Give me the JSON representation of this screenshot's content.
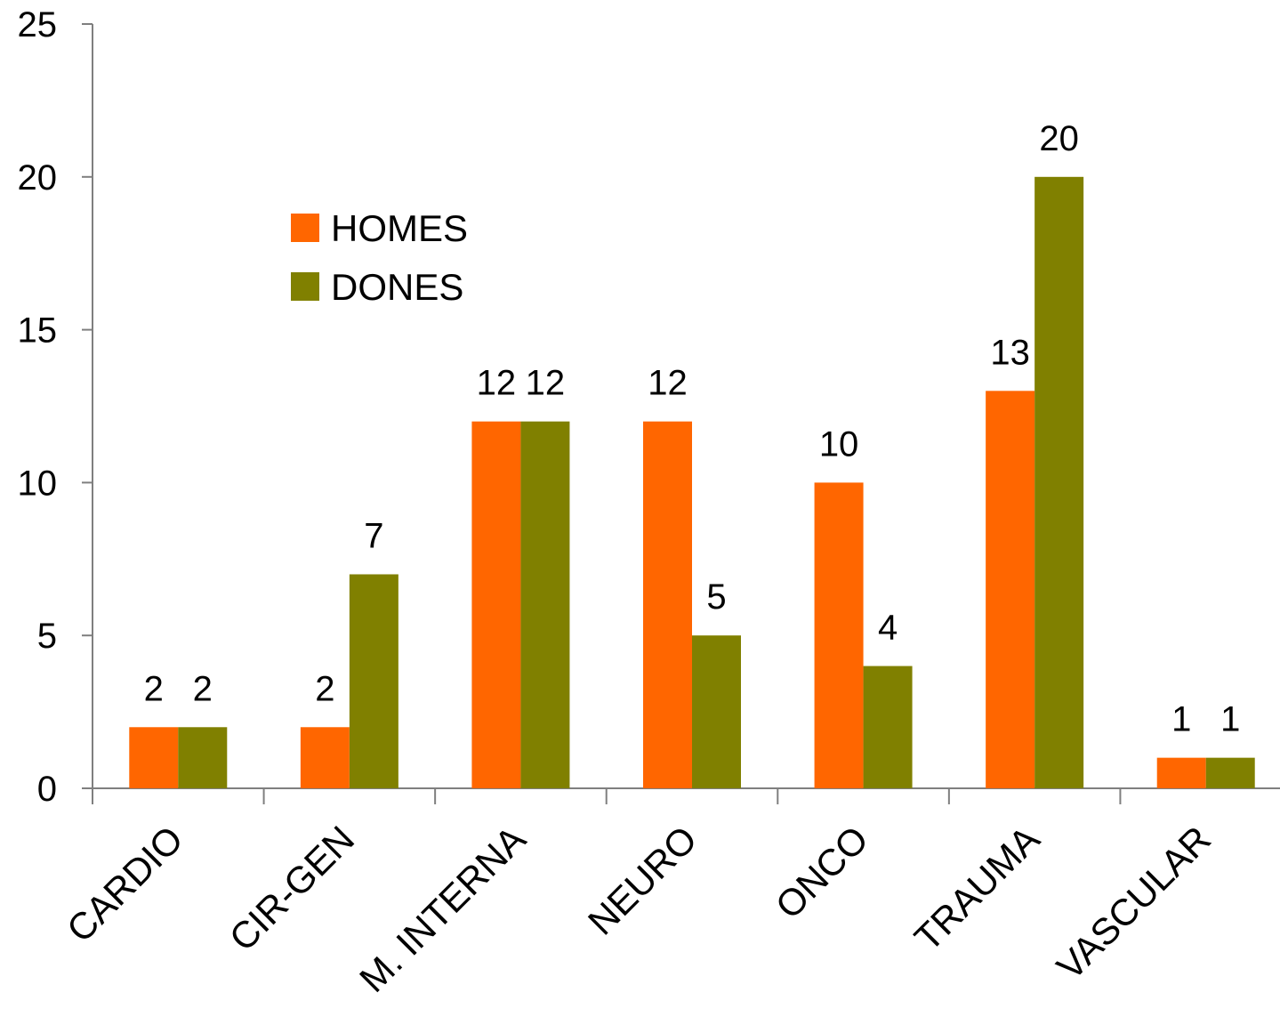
{
  "chart_data": {
    "type": "bar",
    "title": "",
    "xlabel": "",
    "ylabel": "",
    "categories": [
      "CARDIO",
      "CIR-GEN",
      "M. INTERNA",
      "NEURO",
      "ONCO",
      "TRAUMA",
      "VASCULAR"
    ],
    "series": [
      {
        "name": "HOMES",
        "color": "#ff6600",
        "values": [
          2,
          2,
          12,
          12,
          10,
          13,
          1
        ]
      },
      {
        "name": "DONES",
        "color": "#808000",
        "values": [
          2,
          7,
          12,
          5,
          4,
          20,
          1
        ]
      }
    ],
    "yticks": [
      0,
      5,
      10,
      15,
      20,
      25
    ],
    "ylim": [
      0,
      25
    ],
    "grid": false,
    "legend": "upper-left-inside",
    "data_labels": true
  }
}
